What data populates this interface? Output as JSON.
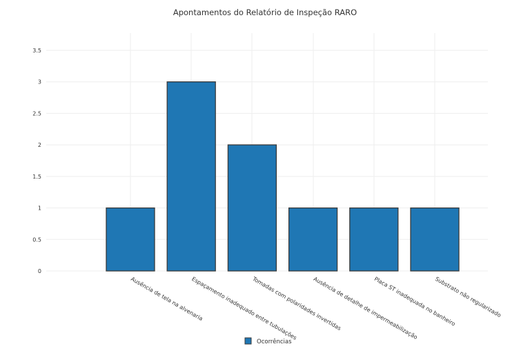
{
  "chart_data": {
    "type": "bar",
    "title": "Apontamentos do Relatório de Inspeção RARO",
    "categories": [
      "Ausência de tela na alvenaria",
      "Espaçamento inadequado entre tubulações",
      "Tomadas com polaridades invertidas",
      "Ausência de detalhe de impermeabilização",
      "Placa ST inadequada no banheiro",
      "Substrato não regularizado"
    ],
    "series": [
      {
        "name": "Ocorrências",
        "values": [
          1,
          3,
          2,
          1,
          1,
          1
        ],
        "color": "#1f77b4"
      }
    ],
    "ylim": [
      0,
      3.5
    ],
    "yticks": [
      "0",
      "0.5",
      "1",
      "1.5",
      "2",
      "2.5",
      "3",
      "3.5"
    ],
    "grid": true,
    "legend_position": "bottom-center"
  }
}
